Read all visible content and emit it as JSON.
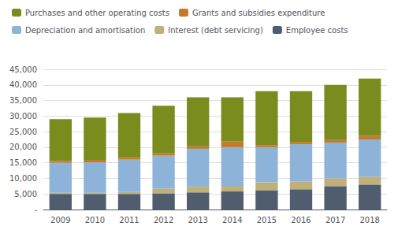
{
  "chart_data": {
    "type": "bar",
    "stacked": true,
    "categories": [
      "2009",
      "2010",
      "2011",
      "2012",
      "2013",
      "2014",
      "2015",
      "2016",
      "2017",
      "2018"
    ],
    "series": [
      {
        "name": "Employee costs",
        "color": "#4F5D6E",
        "values": [
          5000,
          5000,
          5000,
          5200,
          5500,
          5800,
          6200,
          6500,
          7500,
          8000
        ]
      },
      {
        "name": "Interest (debt servicing)",
        "color": "#BFB07A",
        "values": [
          400,
          400,
          600,
          1500,
          1800,
          1800,
          2500,
          2500,
          2500,
          2500
        ]
      },
      {
        "name": "Depreciation and amortisation",
        "color": "#8DB4D8",
        "values": [
          9600,
          9800,
          10400,
          10600,
          12200,
          12400,
          11300,
          12000,
          11500,
          12000
        ]
      },
      {
        "name": "Grants and subsidies expenditure",
        "color": "#C47A2A",
        "values": [
          600,
          700,
          600,
          700,
          800,
          1800,
          700,
          700,
          800,
          1200
        ]
      },
      {
        "name": "Purchases and other operating costs",
        "color": "#7A8C1E",
        "values": [
          13400,
          13600,
          14400,
          15300,
          15700,
          14200,
          17300,
          16300,
          17700,
          18300
        ]
      }
    ],
    "ylim": [
      0,
      45000
    ],
    "yticks": [
      {
        "value": 0,
        "label": "-"
      },
      {
        "value": 5000,
        "label": "5,000"
      },
      {
        "value": 10000,
        "label": "10,000"
      },
      {
        "value": 15000,
        "label": "15,000"
      },
      {
        "value": 20000,
        "label": "20,000"
      },
      {
        "value": 25000,
        "label": "25,000"
      },
      {
        "value": 30000,
        "label": "30,000"
      },
      {
        "value": 35000,
        "label": "35,000"
      },
      {
        "value": 40000,
        "label": "40,000"
      },
      {
        "value": 45000,
        "label": "45,000"
      }
    ],
    "grid": true,
    "legend": "top left"
  }
}
